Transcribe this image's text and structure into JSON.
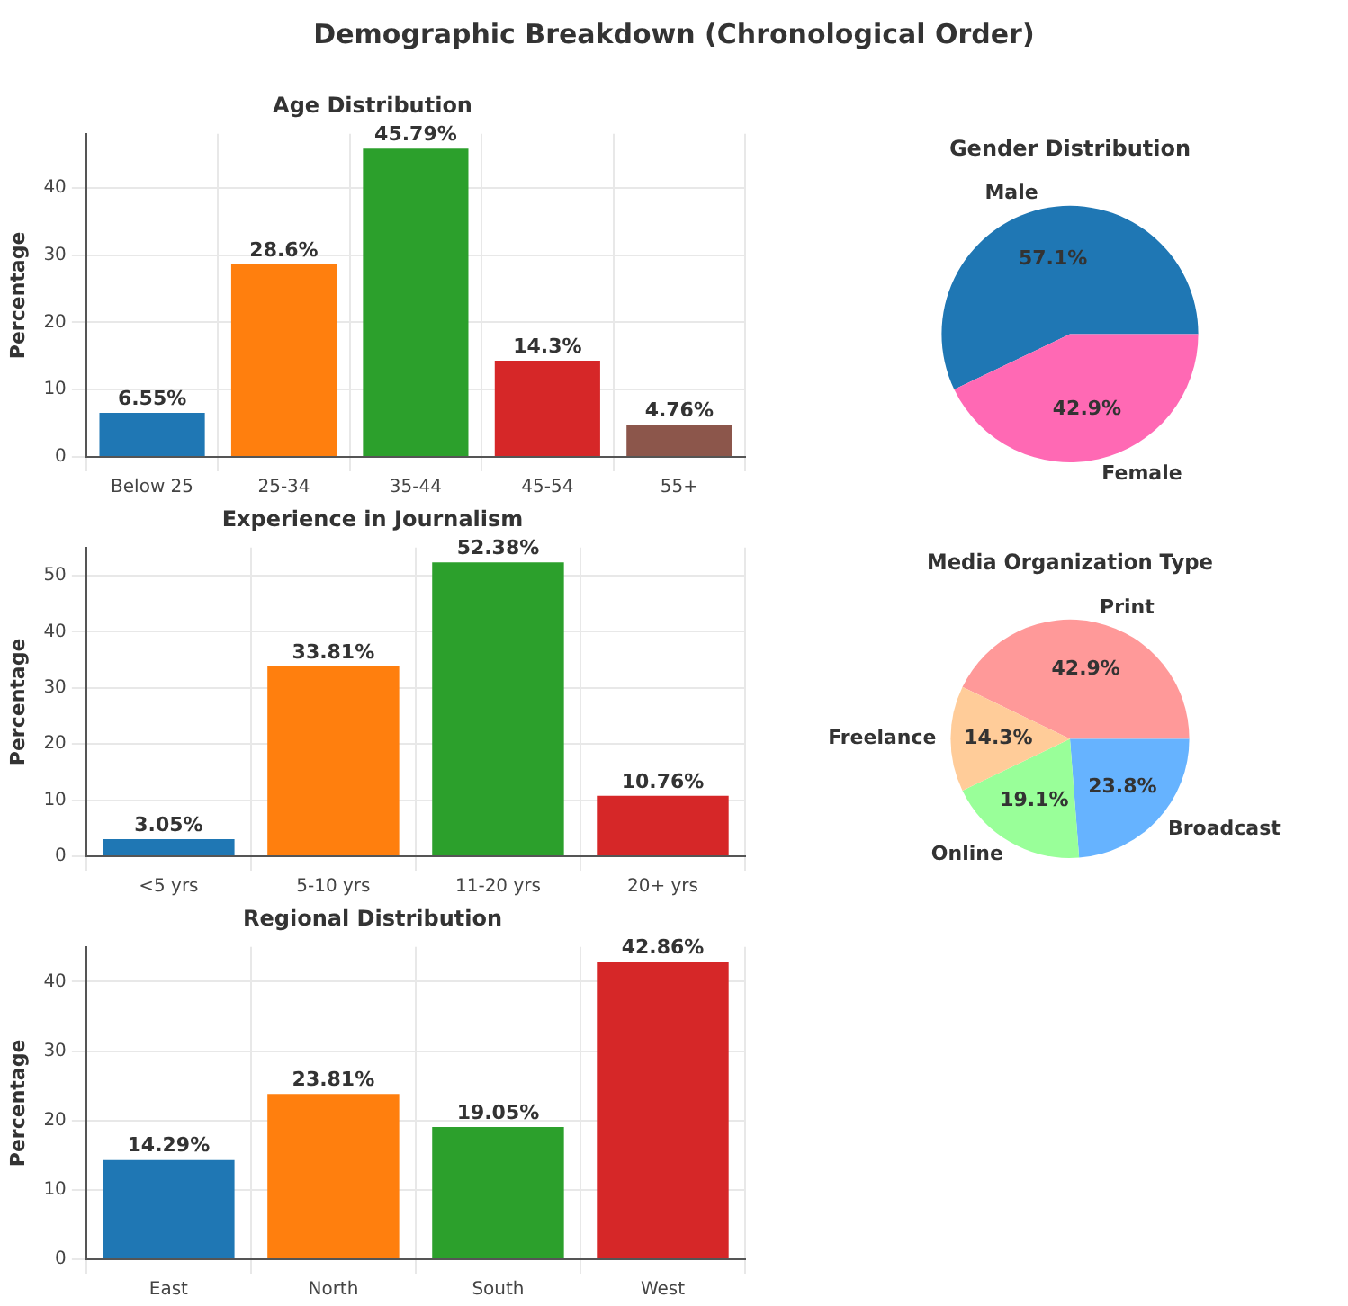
{
  "chart_data": [
    {
      "type": "other",
      "title": "Demographic Breakdown (Chronological Order)"
    },
    {
      "type": "bar",
      "title": "Age Distribution",
      "ylabel": "Percentage",
      "categories": [
        "Below 25",
        "25-34",
        "35-44",
        "45-54",
        "55+"
      ],
      "values": [
        6.55,
        28.6,
        45.79,
        14.3,
        4.76
      ],
      "colors": [
        "#1f77b4",
        "#ff7f0e",
        "#2ca02c",
        "#d62728",
        "#8c564b"
      ],
      "value_labels": [
        "6.55%",
        "28.6%",
        "45.79%",
        "14.3%",
        "4.76%"
      ],
      "ylim": [
        0,
        48
      ],
      "yticks": [
        0,
        10,
        20,
        30,
        40
      ],
      "grid": true
    },
    {
      "type": "pie",
      "title": "Gender Distribution",
      "categories": [
        "Male",
        "Female"
      ],
      "values": [
        57.1,
        42.9
      ],
      "colors": [
        "#1f77b4",
        "#ff69b4"
      ],
      "value_labels": [
        "57.1%",
        "42.9%"
      ]
    },
    {
      "type": "bar",
      "title": "Experience in Journalism",
      "ylabel": "Percentage",
      "categories": [
        "<5 yrs",
        "5-10 yrs",
        "11-20 yrs",
        "20+ yrs"
      ],
      "values": [
        3.05,
        33.81,
        52.38,
        10.76
      ],
      "colors": [
        "#1f77b4",
        "#ff7f0e",
        "#2ca02c",
        "#d62728"
      ],
      "value_labels": [
        "3.05%",
        "33.81%",
        "52.38%",
        "10.76%"
      ],
      "ylim": [
        0,
        55
      ],
      "yticks": [
        0,
        10,
        20,
        30,
        40,
        50
      ],
      "grid": true
    },
    {
      "type": "pie",
      "title": "Media Organization Type",
      "categories": [
        "Print",
        "Broadcast",
        "Online",
        "Freelance"
      ],
      "values": [
        42.9,
        23.8,
        19.1,
        14.3
      ],
      "colors": [
        "#ff9999",
        "#66b3ff",
        "#99ff99",
        "#ffcc99"
      ],
      "value_labels": [
        "42.9%",
        "23.8%",
        "19.1%",
        "14.3%"
      ]
    },
    {
      "type": "bar",
      "title": "Regional Distribution",
      "ylabel": "Percentage",
      "categories": [
        "East",
        "North",
        "South",
        "West"
      ],
      "values": [
        14.29,
        23.81,
        19.05,
        42.86
      ],
      "colors": [
        "#1f77b4",
        "#ff7f0e",
        "#2ca02c",
        "#d62728"
      ],
      "value_labels": [
        "14.29%",
        "23.81%",
        "19.05%",
        "42.86%"
      ],
      "ylim": [
        0,
        45
      ],
      "yticks": [
        0,
        10,
        20,
        30,
        40
      ],
      "grid": true
    }
  ]
}
